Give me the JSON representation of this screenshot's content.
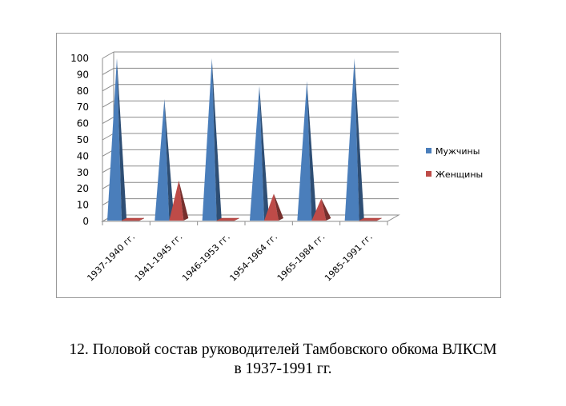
{
  "chart_data": {
    "type": "bar",
    "categories": [
      "1937-1940  гг.",
      "1941-1945  гг.",
      "1946-1953  гг.",
      "1954-1964  гг.",
      "1965-1984  гг.",
      "1985-1991  гг."
    ],
    "series": [
      {
        "name": "Мужчины",
        "values": [
          100,
          75,
          100,
          83,
          86,
          100
        ],
        "color": "#4a7ebb"
      },
      {
        "name": "Женщины",
        "values": [
          0,
          25,
          0,
          17,
          14,
          0
        ],
        "color": "#be4b48"
      }
    ],
    "ylim": [
      0,
      100
    ],
    "yticks": [
      0,
      10,
      20,
      30,
      40,
      50,
      60,
      70,
      80,
      90,
      100
    ],
    "legend_position": "right",
    "grid": true,
    "bar_shape": "3d-pyramid"
  },
  "caption": {
    "line1": "12. Половой состав руководителей Тамбовского обкома ВЛКСМ",
    "line2": "в 1937-1991 гг."
  }
}
